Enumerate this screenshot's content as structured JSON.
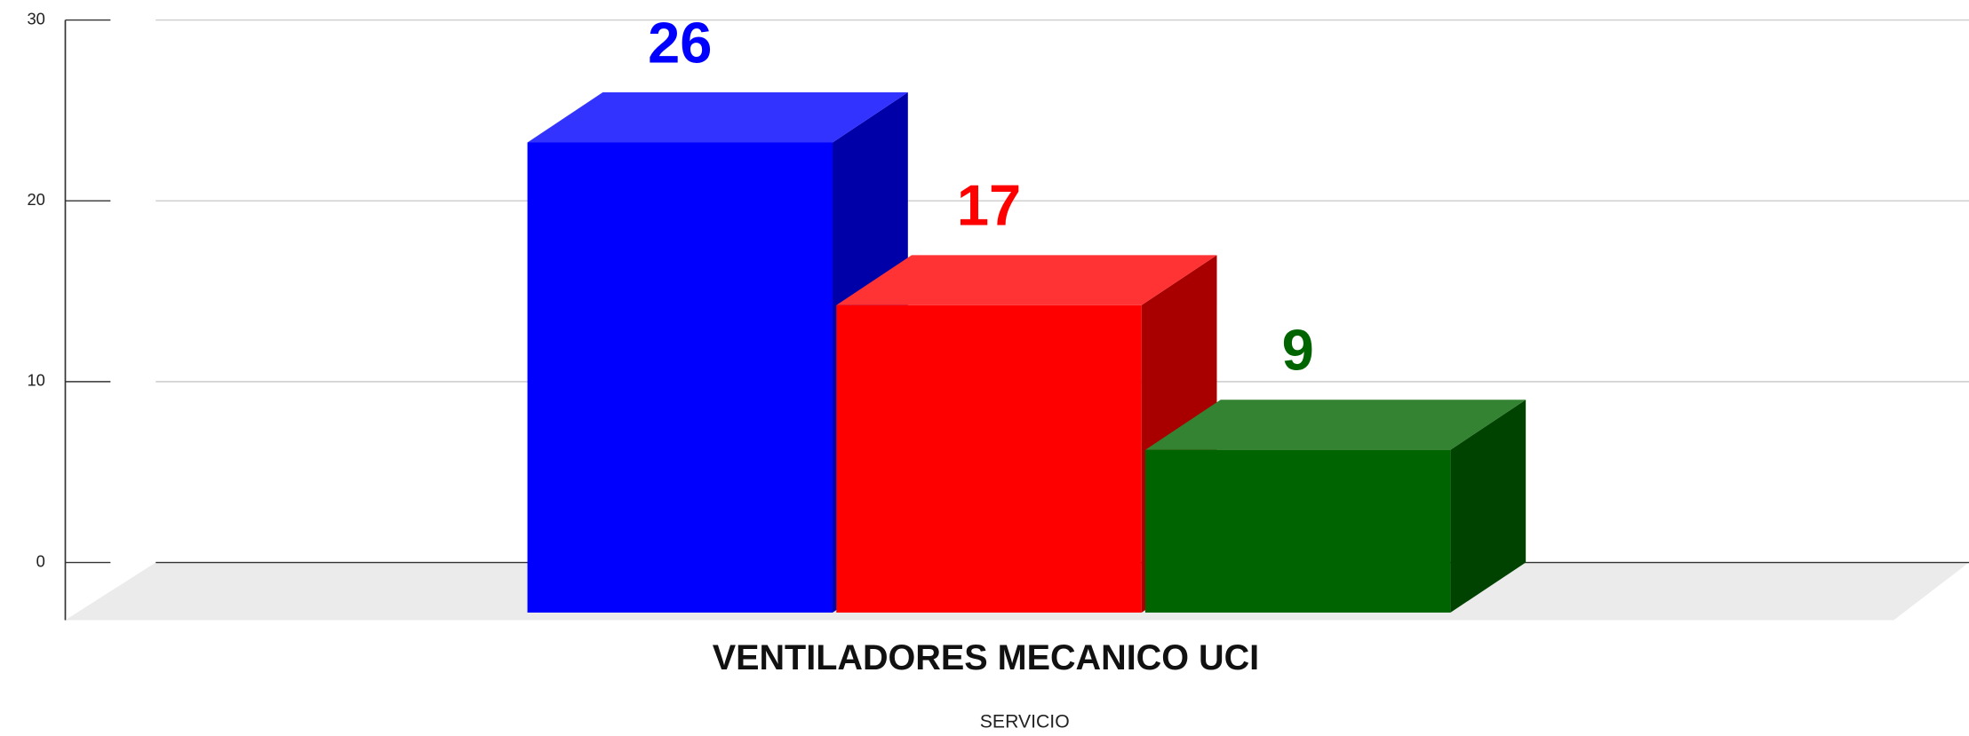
{
  "chart_data": {
    "type": "bar",
    "categories": [
      "VENTILADORES MECANICO UCI"
    ],
    "xlabel": "SERVICIO",
    "series": [
      {
        "color": "#0000ff",
        "values": [
          26
        ]
      },
      {
        "color": "#ff0000",
        "values": [
          17
        ]
      },
      {
        "color": "#006400",
        "values": [
          9
        ]
      }
    ],
    "ylim": [
      0,
      30
    ],
    "yticks": [
      0,
      10,
      20,
      30
    ],
    "grid": true
  }
}
